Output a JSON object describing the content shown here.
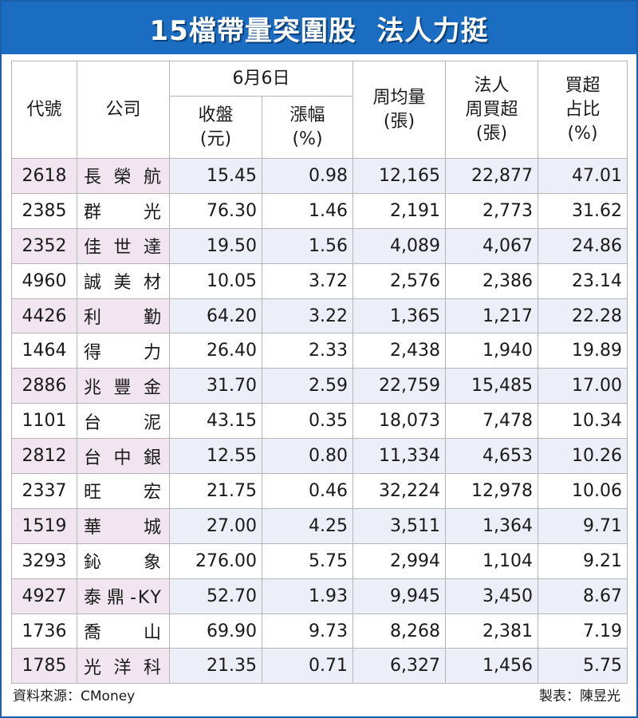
{
  "title": "15檔帶量突圍股  法人力挺",
  "header": {
    "code": "代號",
    "company": "公司",
    "date_group": "6月6日",
    "close": "收盤",
    "close_unit": "(元)",
    "change": "漲幅",
    "change_unit": "(%)",
    "weekly_volume": "周均量",
    "weekly_volume_unit": "(張)",
    "inst_line1": "法人",
    "inst_line2": "周買超",
    "inst_unit": "(張)",
    "ratio_line1": "買超",
    "ratio_line2": "占比",
    "ratio_unit": "(%)"
  },
  "rows": [
    {
      "code": "2618",
      "name": "長榮航",
      "close": "15.45",
      "change": "0.98",
      "volume": "12,165",
      "buy": "22,877",
      "ratio": "47.01"
    },
    {
      "code": "2385",
      "name": "群光",
      "close": "76.30",
      "change": "1.46",
      "volume": "2,191",
      "buy": "2,773",
      "ratio": "31.62"
    },
    {
      "code": "2352",
      "name": "佳世達",
      "close": "19.50",
      "change": "1.56",
      "volume": "4,089",
      "buy": "4,067",
      "ratio": "24.86"
    },
    {
      "code": "4960",
      "name": "誠美材",
      "close": "10.05",
      "change": "3.72",
      "volume": "2,576",
      "buy": "2,386",
      "ratio": "23.14"
    },
    {
      "code": "4426",
      "name": "利勤",
      "close": "64.20",
      "change": "3.22",
      "volume": "1,365",
      "buy": "1,217",
      "ratio": "22.28"
    },
    {
      "code": "1464",
      "name": "得力",
      "close": "26.40",
      "change": "2.33",
      "volume": "2,438",
      "buy": "1,940",
      "ratio": "19.89"
    },
    {
      "code": "2886",
      "name": "兆豐金",
      "close": "31.70",
      "change": "2.59",
      "volume": "22,759",
      "buy": "15,485",
      "ratio": "17.00"
    },
    {
      "code": "1101",
      "name": "台泥",
      "close": "43.15",
      "change": "0.35",
      "volume": "18,073",
      "buy": "7,478",
      "ratio": "10.34"
    },
    {
      "code": "2812",
      "name": "台中銀",
      "close": "12.55",
      "change": "0.80",
      "volume": "11,334",
      "buy": "4,653",
      "ratio": "10.26"
    },
    {
      "code": "2337",
      "name": "旺宏",
      "close": "21.75",
      "change": "0.46",
      "volume": "32,224",
      "buy": "12,978",
      "ratio": "10.06"
    },
    {
      "code": "1519",
      "name": "華城",
      "close": "27.00",
      "change": "4.25",
      "volume": "3,511",
      "buy": "1,364",
      "ratio": "9.71"
    },
    {
      "code": "3293",
      "name": "鈊象",
      "close": "276.00",
      "change": "5.75",
      "volume": "2,994",
      "buy": "1,104",
      "ratio": "9.21"
    },
    {
      "code": "4927",
      "name": "泰鼎-KY",
      "close": "52.70",
      "change": "1.93",
      "volume": "9,945",
      "buy": "3,450",
      "ratio": "8.67"
    },
    {
      "code": "1736",
      "name": "喬山",
      "close": "69.90",
      "change": "9.73",
      "volume": "8,268",
      "buy": "2,381",
      "ratio": "7.19"
    },
    {
      "code": "1785",
      "name": "光洋科",
      "close": "21.35",
      "change": "0.71",
      "volume": "6,327",
      "buy": "1,456",
      "ratio": "5.75"
    }
  ],
  "footer": {
    "source": "資料來源：CMoney",
    "author": "製表：陳昱光"
  }
}
